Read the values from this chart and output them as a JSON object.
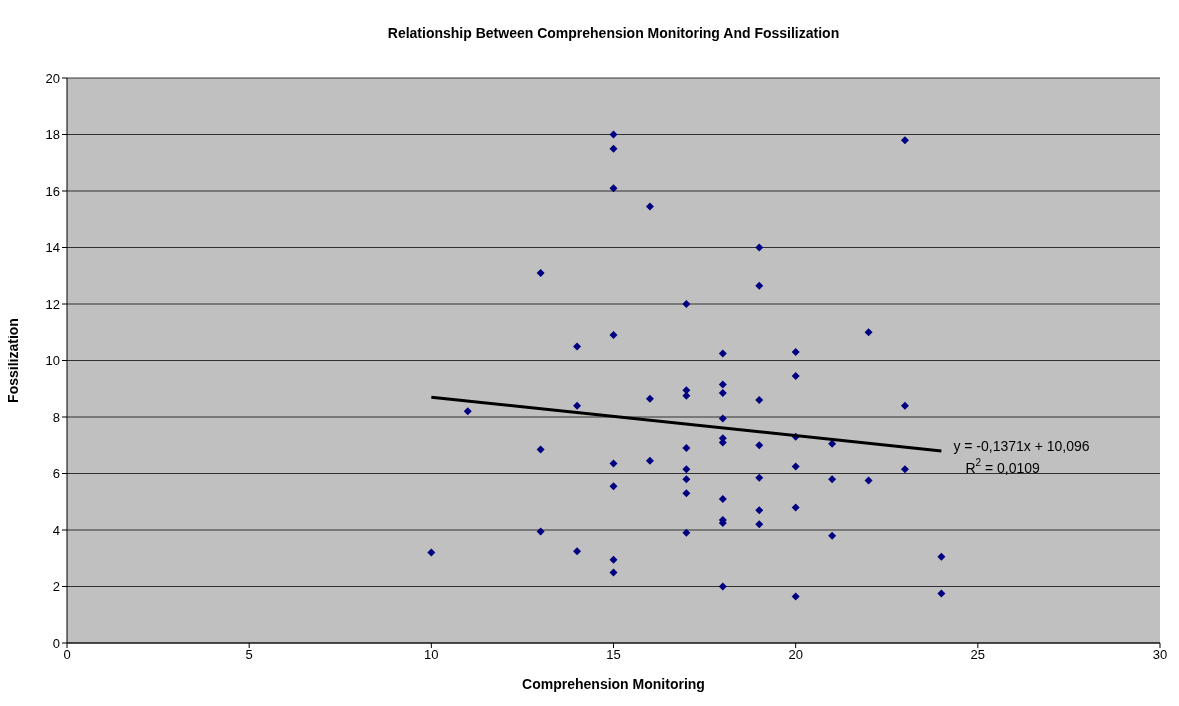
{
  "chart_data": {
    "type": "scatter",
    "title": "Relationship Between Comprehension Monitoring And Fossilization",
    "xlabel": "Comprehension Monitoring",
    "ylabel": "Fossilization",
    "xlim": [
      0,
      30
    ],
    "xticks": [
      0,
      5,
      10,
      15,
      20,
      25,
      30
    ],
    "ylim": [
      0,
      20
    ],
    "yticks": [
      0,
      2,
      4,
      6,
      8,
      10,
      12,
      14,
      16,
      18,
      20
    ],
    "grid": "y",
    "legend": false,
    "marker": "diamond",
    "series": [
      {
        "color": "#000080",
        "x": [
          10,
          11,
          13,
          13,
          13,
          14,
          14,
          14,
          15,
          15,
          15,
          15,
          15,
          15,
          15,
          15,
          16,
          16,
          16,
          17,
          17,
          17,
          17,
          17,
          17,
          17,
          17,
          18,
          18,
          18,
          18,
          18,
          18,
          18,
          18,
          18,
          18,
          19,
          19,
          19,
          19,
          19,
          19,
          19,
          20,
          20,
          20,
          20,
          20,
          20,
          21,
          21,
          21,
          22,
          22,
          23,
          23,
          23,
          24,
          24
        ],
        "values": [
          3.2,
          8.2,
          13.1,
          6.85,
          3.95,
          10.5,
          8.4,
          3.25,
          18.0,
          17.5,
          16.1,
          10.9,
          6.35,
          5.55,
          2.95,
          2.5,
          15.45,
          8.65,
          6.45,
          12.0,
          8.95,
          8.75,
          6.9,
          6.15,
          5.8,
          5.3,
          3.9,
          10.25,
          9.15,
          8.85,
          7.95,
          7.25,
          7.1,
          5.1,
          4.35,
          4.25,
          2.0,
          14.0,
          12.65,
          8.6,
          7.0,
          5.85,
          4.7,
          4.2,
          10.3,
          9.45,
          7.3,
          6.25,
          4.8,
          1.65,
          7.05,
          5.8,
          3.8,
          11.0,
          5.75,
          17.8,
          8.4,
          6.15,
          3.05,
          1.75
        ]
      },
      {
        "type": "line",
        "color": "#000000",
        "marker": "none",
        "line_style": "solid",
        "x": [
          10,
          24
        ],
        "values": [
          8.7,
          6.8
        ]
      }
    ],
    "annotations": [
      "y = -0,1371x + 10,096",
      "R$^{2}$ = 0,0109"
    ]
  }
}
